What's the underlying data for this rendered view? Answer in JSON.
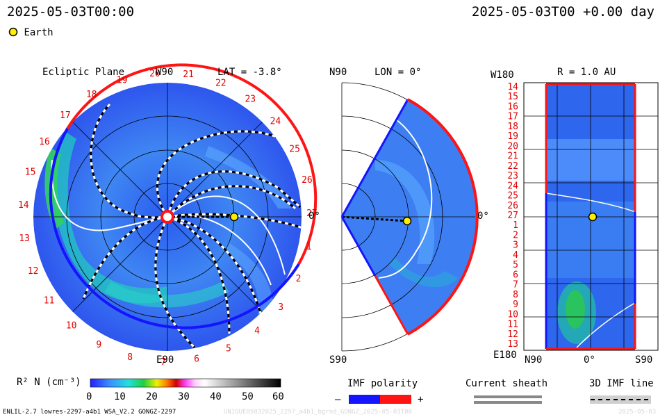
{
  "header": {
    "time_left": "2025-05-03T00:00",
    "time_right": "2025-05-03T00 +0.00 day",
    "legend_label": "Earth"
  },
  "ecliptic": {
    "title": "Ecliptic Plane",
    "top_label": "W90",
    "lat_label": "LAT = -3.8°",
    "right_label": "0°",
    "bottom_label": "E90",
    "rotation_labels": [
      "20",
      "21",
      "22",
      "23",
      "24",
      "25",
      "26",
      "27",
      "1",
      "2",
      "3",
      "4",
      "5",
      "6",
      "7",
      "8",
      "9",
      "10",
      "11",
      "12",
      "13",
      "14",
      "15",
      "16",
      "17",
      "18",
      "19"
    ]
  },
  "meridional": {
    "top_label": "N90",
    "lon_label": "LON = 0°",
    "right_label": "0°",
    "bottom_label": "S90"
  },
  "radial": {
    "top_left_label": "W180",
    "r_label": "R = 1.0 AU",
    "bottom_left_label": "E180",
    "x_labels": [
      "N90",
      "0°",
      "S90"
    ],
    "y_labels": [
      "14",
      "15",
      "16",
      "17",
      "18",
      "19",
      "20",
      "21",
      "22",
      "23",
      "24",
      "25",
      "26",
      "27",
      "1",
      "2",
      "3",
      "4",
      "5",
      "6",
      "7",
      "8",
      "9",
      "10",
      "11",
      "12",
      "13"
    ]
  },
  "colorbar": {
    "label": "R² N (cm⁻³)",
    "ticks": [
      "0",
      "10",
      "20",
      "30",
      "40",
      "50",
      "60"
    ]
  },
  "legends": {
    "imf_title": "IMF polarity",
    "imf_minus": "–",
    "imf_plus": "+",
    "sheath_title": "Current sheath",
    "imf3d_title": "3D IMF line"
  },
  "footer": {
    "model_info": "ENLIL-2.7 lowres-2297-a4b1 WSA_V2.2 GONGZ-2297",
    "run_id": "UNIQUE05032025_2297_a4b1_bgrnd_GONGZ_2025-05-03T00",
    "run_date": "2025-05-03"
  },
  "colors": {
    "positive_polarity": "#ff1414",
    "negative_polarity": "#1414ff",
    "earth": "#ffee00",
    "label_red": "#e00000"
  },
  "chart_data": {
    "type": "heatmap",
    "quantity": "R² N (cm⁻³)",
    "color_range": [
      0,
      60
    ],
    "earth_position": {
      "radius_au": 1.0,
      "longitude_deg": 0,
      "latitude_deg": 0
    }
  }
}
